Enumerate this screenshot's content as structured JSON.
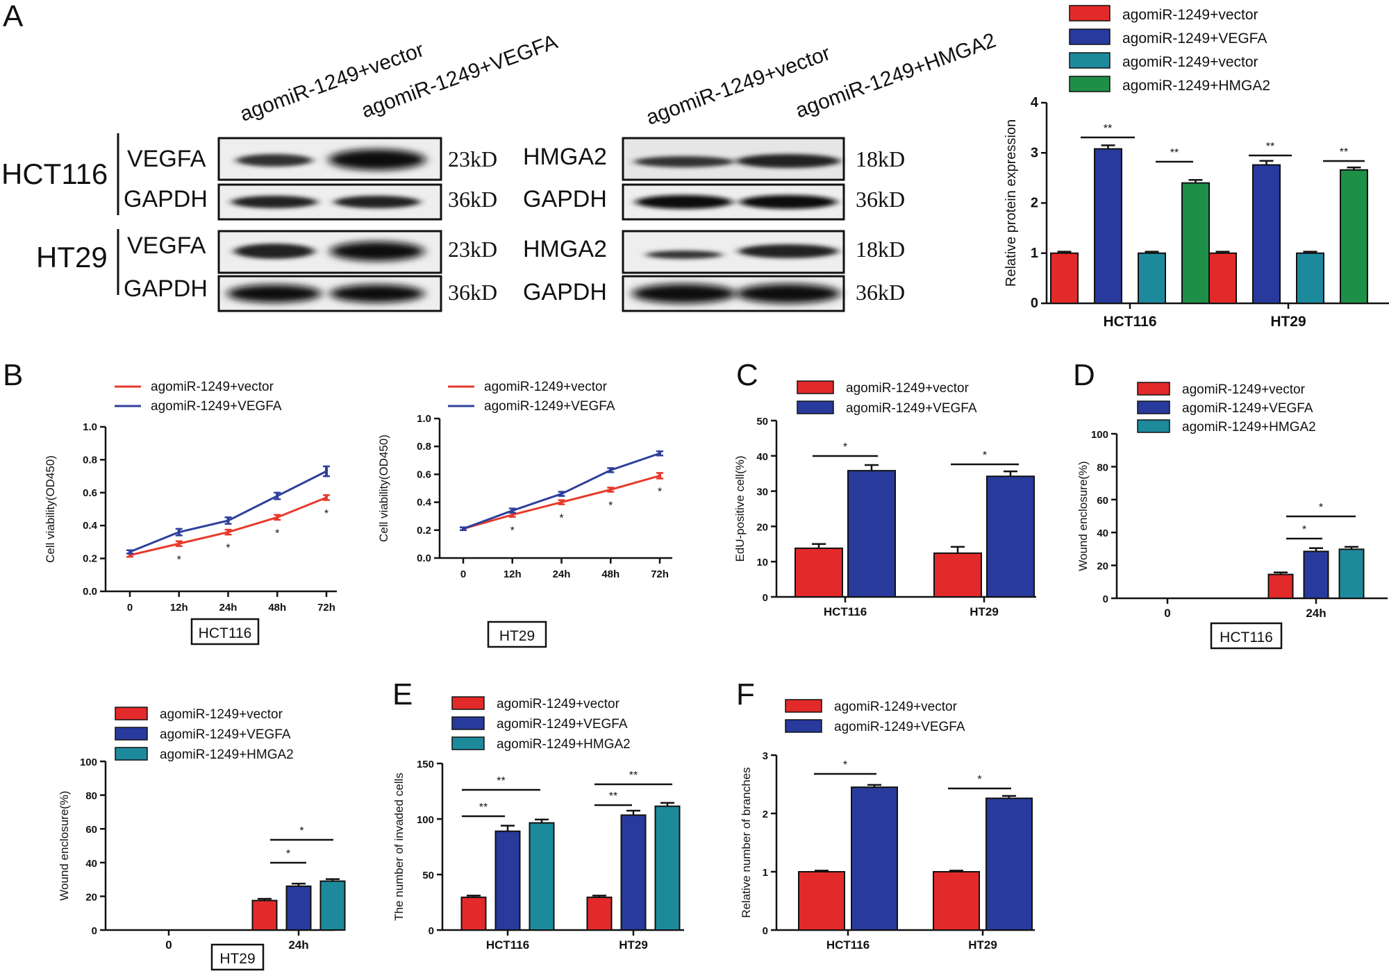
{
  "colors": {
    "red": "#e32a2a",
    "blue": "#283a9c",
    "teal": "#1d8a9c",
    "green": "#1e8f46",
    "line_red": "#e8392b",
    "line_blue": "#2e3f9b"
  },
  "panel_letters": [
    "A",
    "B",
    "C",
    "D",
    "E",
    "F"
  ],
  "western_blot": {
    "left_columns": [
      "agomiR-1249+vector",
      "agomiR-1249+VEGFA"
    ],
    "right_columns": [
      "agomiR-1249+vector",
      "agomiR-1249+HMGA2"
    ],
    "cells": [
      "HCT116",
      "HT29"
    ],
    "left_proteins": [
      "VEGFA",
      "GAPDH"
    ],
    "right_proteins": [
      "HMGA2",
      "GAPDH"
    ],
    "left_kd": [
      "23kD",
      "36kD"
    ],
    "right_kd": [
      "18kD",
      "36kD"
    ]
  },
  "chart_data": [
    {
      "id": "A_bar",
      "type": "bar",
      "categories": [
        "HCT116",
        "HT29"
      ],
      "ylabel": "Relative protein expression",
      "ylim": [
        0,
        4
      ],
      "yticks": [
        0,
        1,
        2,
        3,
        4
      ],
      "legend_position": "top",
      "series": [
        {
          "name": "agomiR-1249+vector",
          "color": "#e32a2a",
          "values": [
            1.0,
            1.0
          ],
          "errors": [
            0.03,
            0.03
          ]
        },
        {
          "name": "agomiR-1249+VEGFA",
          "color": "#283a9c",
          "values": [
            3.08,
            2.76
          ],
          "errors": [
            0.07,
            0.08
          ]
        },
        {
          "name": "agomiR-1249+vector",
          "color": "#1d8a9c",
          "values": [
            1.0,
            1.0
          ],
          "errors": [
            0.03,
            0.03
          ]
        },
        {
          "name": "agomiR-1249+HMGA2",
          "color": "#1e8f46",
          "values": [
            2.4,
            2.66
          ],
          "errors": [
            0.06,
            0.05
          ]
        }
      ],
      "annotations": [
        "**",
        "**",
        "**",
        "**"
      ]
    },
    {
      "id": "B_HCT116",
      "type": "line",
      "x": [
        "0",
        "12h",
        "24h",
        "48h",
        "72h"
      ],
      "ylabel": "Cell viability(OD450)",
      "ylim": [
        0,
        1.0
      ],
      "yticks": [
        "0.0",
        "0.2",
        "0.4",
        "0.6",
        "0.8",
        "1.0"
      ],
      "box_label": "HCT116",
      "series": [
        {
          "name": "agomiR-1249+vector",
          "color": "#e8392b",
          "values": [
            0.22,
            0.29,
            0.36,
            0.45,
            0.57
          ],
          "errors": [
            0.01,
            0.015,
            0.015,
            0.015,
            0.015
          ]
        },
        {
          "name": "agomiR-1249+VEGFA",
          "color": "#2e3f9b",
          "values": [
            0.24,
            0.36,
            0.43,
            0.58,
            0.73
          ],
          "errors": [
            0.01,
            0.02,
            0.02,
            0.02,
            0.03
          ]
        }
      ],
      "annotations": [
        "*",
        "*",
        "*",
        "*"
      ]
    },
    {
      "id": "B_HT29",
      "type": "line",
      "x": [
        "0",
        "12h",
        "24h",
        "48h",
        "72h"
      ],
      "ylabel": "Cell viability(OD450)",
      "ylim": [
        0,
        1.0
      ],
      "yticks": [
        "0.0",
        "0.2",
        "0.4",
        "0.6",
        "0.8",
        "1.0"
      ],
      "box_label": "HT29",
      "series": [
        {
          "name": "agomiR-1249+vector",
          "color": "#e8392b",
          "values": [
            0.21,
            0.31,
            0.4,
            0.49,
            0.59
          ],
          "errors": [
            0.01,
            0.015,
            0.015,
            0.015,
            0.02
          ]
        },
        {
          "name": "agomiR-1249+VEGFA",
          "color": "#2e3f9b",
          "values": [
            0.21,
            0.34,
            0.46,
            0.63,
            0.75
          ],
          "errors": [
            0.01,
            0.015,
            0.015,
            0.015,
            0.015
          ]
        }
      ],
      "annotations": [
        "*",
        "*",
        "*",
        "*"
      ]
    },
    {
      "id": "C",
      "type": "bar",
      "categories": [
        "HCT116",
        "HT29"
      ],
      "ylabel": "EdU-positive cell(%)",
      "ylim": [
        0,
        50
      ],
      "yticks": [
        0,
        10,
        20,
        30,
        40,
        50
      ],
      "series": [
        {
          "name": "agomiR-1249+vector",
          "color": "#e32a2a",
          "values": [
            13.8,
            12.4
          ],
          "errors": [
            1.2,
            1.8
          ]
        },
        {
          "name": "agomiR-1249+VEGFA",
          "color": "#283a9c",
          "values": [
            35.8,
            34.2
          ],
          "errors": [
            1.6,
            1.4
          ]
        }
      ],
      "annotations": [
        "*",
        "*"
      ]
    },
    {
      "id": "D_HCT116",
      "type": "bar",
      "categories": [
        "0",
        "24h"
      ],
      "ylabel": "Wound enclosure(%)",
      "ylim": [
        0,
        100
      ],
      "yticks": [
        0,
        20,
        40,
        60,
        80,
        100
      ],
      "box_label": "HCT116",
      "series": [
        {
          "name": "agomiR-1249+vector",
          "color": "#e32a2a",
          "values": [
            0,
            14.5
          ],
          "errors": [
            0,
            1.2
          ]
        },
        {
          "name": "agomiR-1249+VEGFA",
          "color": "#283a9c",
          "values": [
            0,
            28.5
          ],
          "errors": [
            0,
            2.0
          ]
        },
        {
          "name": "agomiR-1249+HMGA2",
          "color": "#1d8a9c",
          "values": [
            0,
            29.8
          ],
          "errors": [
            0,
            1.5
          ]
        }
      ],
      "annotations": [
        "*",
        "*"
      ]
    },
    {
      "id": "D_HT29",
      "type": "bar",
      "categories": [
        "0",
        "24h"
      ],
      "ylabel": "Wound enclosure(%)",
      "ylim": [
        0,
        100
      ],
      "yticks": [
        0,
        20,
        40,
        60,
        80,
        100
      ],
      "box_label": "HT29",
      "series": [
        {
          "name": "agomiR-1249+vector",
          "color": "#e32a2a",
          "values": [
            0,
            17.5
          ],
          "errors": [
            0,
            1.0
          ]
        },
        {
          "name": "agomiR-1249+VEGFA",
          "color": "#283a9c",
          "values": [
            0,
            26.0
          ],
          "errors": [
            0,
            1.5
          ]
        },
        {
          "name": "agomiR-1249+HMGA2",
          "color": "#1d8a9c",
          "values": [
            0,
            29.0
          ],
          "errors": [
            0,
            1.2
          ]
        }
      ],
      "annotations": [
        "*",
        "*"
      ]
    },
    {
      "id": "E",
      "type": "bar",
      "categories": [
        "HCT116",
        "HT29"
      ],
      "ylabel": "The number of invaded cells",
      "ylim": [
        0,
        150
      ],
      "yticks": [
        0,
        50,
        100,
        150
      ],
      "series": [
        {
          "name": "agomiR-1249+vector",
          "color": "#e32a2a",
          "values": [
            29.5,
            29.5
          ],
          "errors": [
            1.5,
            1.5
          ]
        },
        {
          "name": "agomiR-1249+VEGFA",
          "color": "#283a9c",
          "values": [
            89.0,
            103.5
          ],
          "errors": [
            5.0,
            4.0
          ]
        },
        {
          "name": "agomiR-1249+HMGA2",
          "color": "#1d8a9c",
          "values": [
            96.5,
            111.5
          ],
          "errors": [
            3.0,
            3.0
          ]
        }
      ],
      "annotations": [
        "**",
        "**",
        "**",
        "**"
      ]
    },
    {
      "id": "F",
      "type": "bar",
      "categories": [
        "HCT116",
        "HT29"
      ],
      "ylabel": "Relative number of branches",
      "ylim": [
        0,
        3
      ],
      "yticks": [
        0,
        1,
        2,
        3
      ],
      "series": [
        {
          "name": "agomiR-1249+vector",
          "color": "#e32a2a",
          "values": [
            1.0,
            1.0
          ],
          "errors": [
            0.02,
            0.02
          ]
        },
        {
          "name": "agomiR-1249+VEGFA",
          "color": "#283a9c",
          "values": [
            2.45,
            2.26
          ],
          "errors": [
            0.04,
            0.04
          ]
        }
      ],
      "annotations": [
        "*",
        "*"
      ]
    }
  ]
}
